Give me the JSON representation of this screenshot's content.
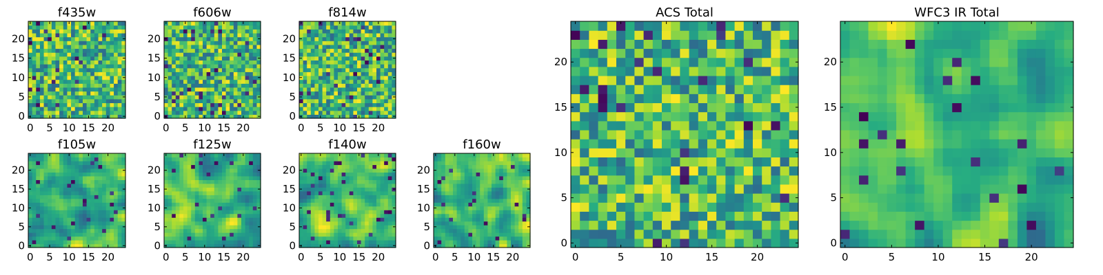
{
  "chart_data": [
    {
      "type": "heatmap",
      "title": "f435w",
      "xticks": [
        "0",
        "5",
        "10",
        "15",
        "20"
      ],
      "yticks": [
        "0",
        "5",
        "10",
        "15",
        "20"
      ],
      "xlim": [
        0,
        25
      ],
      "ylim": [
        0,
        25
      ],
      "grid": false,
      "colormap": "viridis",
      "cell_style": "noise",
      "seed": 11
    },
    {
      "type": "heatmap",
      "title": "f606w",
      "xticks": [
        "0",
        "5",
        "10",
        "15",
        "20"
      ],
      "yticks": [
        "0",
        "5",
        "10",
        "15",
        "20"
      ],
      "xlim": [
        0,
        25
      ],
      "ylim": [
        0,
        25
      ],
      "grid": false,
      "colormap": "viridis",
      "cell_style": "noise",
      "seed": 23
    },
    {
      "type": "heatmap",
      "title": "f814w",
      "xticks": [
        "0",
        "5",
        "10",
        "15",
        "20"
      ],
      "yticks": [
        "0",
        "5",
        "10",
        "15",
        "20"
      ],
      "xlim": [
        0,
        25
      ],
      "ylim": [
        0,
        25
      ],
      "grid": false,
      "colormap": "viridis",
      "cell_style": "noise",
      "seed": 37
    },
    {
      "type": "heatmap",
      "title": "f105w",
      "xticks": [
        "0",
        "5",
        "10",
        "15",
        "20"
      ],
      "yticks": [
        "0",
        "5",
        "10",
        "15",
        "20"
      ],
      "xlim": [
        0,
        25
      ],
      "ylim": [
        0,
        25
      ],
      "grid": false,
      "colormap": "viridis",
      "cell_style": "smooth",
      "seed": 41
    },
    {
      "type": "heatmap",
      "title": "f125w",
      "xticks": [
        "0",
        "5",
        "10",
        "15",
        "20"
      ],
      "yticks": [
        "0",
        "5",
        "10",
        "15",
        "20"
      ],
      "xlim": [
        0,
        25
      ],
      "ylim": [
        0,
        25
      ],
      "grid": false,
      "colormap": "viridis",
      "cell_style": "smooth",
      "seed": 53
    },
    {
      "type": "heatmap",
      "title": "f140w",
      "xticks": [
        "0",
        "5",
        "10",
        "15",
        "20"
      ],
      "yticks": [
        "0",
        "5",
        "10",
        "15",
        "20"
      ],
      "xlim": [
        0,
        25
      ],
      "ylim": [
        0,
        25
      ],
      "grid": false,
      "colormap": "viridis",
      "cell_style": "smooth",
      "seed": 67
    },
    {
      "type": "heatmap",
      "title": "f160w",
      "xticks": [
        "0",
        "5",
        "10",
        "15",
        "20"
      ],
      "yticks": [
        "0",
        "5",
        "10",
        "15",
        "20"
      ],
      "xlim": [
        0,
        25
      ],
      "ylim": [
        0,
        25
      ],
      "grid": false,
      "colormap": "viridis",
      "cell_style": "smooth",
      "seed": 79
    },
    {
      "type": "heatmap",
      "title": "ACS Total",
      "xticks": [
        "0",
        "5",
        "10",
        "15",
        "20"
      ],
      "yticks": [
        "0",
        "5",
        "10",
        "15",
        "20"
      ],
      "xlim": [
        0,
        25
      ],
      "ylim": [
        0,
        25
      ],
      "grid": false,
      "colormap": "viridis",
      "cell_style": "noise",
      "seed": 97
    },
    {
      "type": "heatmap",
      "title": "WFC3 IR Total",
      "xticks": [
        "0",
        "5",
        "10",
        "15",
        "20"
      ],
      "yticks": [
        "0",
        "5",
        "10",
        "15",
        "20"
      ],
      "xlim": [
        0,
        25
      ],
      "ylim": [
        0,
        25
      ],
      "grid": false,
      "colormap": "viridis",
      "cell_style": "smooth",
      "seed": 131
    }
  ]
}
